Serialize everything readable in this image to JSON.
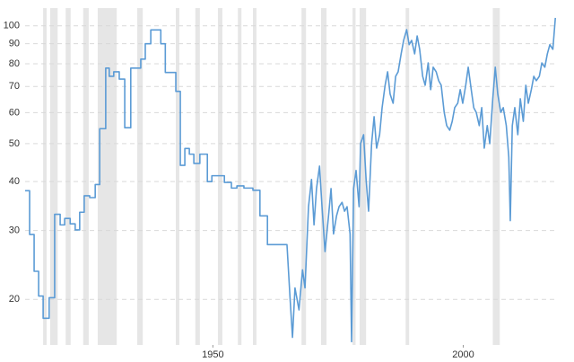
{
  "chart_data": {
    "type": "line",
    "log_scale_y": true,
    "grid": true,
    "xlim": [
      1912.5,
      2018.9
    ],
    "ylim": [
      15.3,
      111
    ],
    "xticks": [
      1950,
      2000
    ],
    "yticks": [
      20,
      30,
      40,
      50,
      60,
      70,
      80,
      90,
      100
    ],
    "recession_color": "#e6e6e6",
    "recessions": [
      [
        1916.1,
        1916.8
      ],
      [
        1917.5,
        1919.0
      ],
      [
        1920.6,
        1921.6
      ],
      [
        1924.1,
        1925.2
      ],
      [
        1927.0,
        1930.8
      ],
      [
        1934.9,
        1936.0
      ],
      [
        1942.6,
        1943.3
      ],
      [
        1946.5,
        1947.4
      ],
      [
        1951.0,
        1951.9
      ],
      [
        1955.0,
        1955.7
      ],
      [
        1958.0,
        1958.7
      ],
      [
        1967.7,
        1968.6
      ],
      [
        1971.6,
        1972.7
      ],
      [
        1977.9,
        1978.5
      ],
      [
        1979.3,
        1980.6
      ],
      [
        1988.5,
        1989.2
      ],
      [
        2005.9,
        2007.3
      ]
    ],
    "series": [
      {
        "color": "#5b9bd5",
        "x": [
          1912.5,
          1913.4,
          1913.4,
          1914.3,
          1914.3,
          1915.2,
          1915.2,
          1916.1,
          1916.1,
          1917.3,
          1917.3,
          1918.4,
          1918.4,
          1919.5,
          1919.5,
          1920.4,
          1920.4,
          1921.5,
          1921.5,
          1922.5,
          1922.5,
          1923.4,
          1923.4,
          1924.3,
          1924.3,
          1925.4,
          1925.4,
          1926.5,
          1926.5,
          1927.4,
          1927.4,
          1928.6,
          1928.6,
          1929.3,
          1929.3,
          1930.2,
          1930.2,
          1931.3,
          1931.3,
          1932.4,
          1932.4,
          1933.6,
          1933.6,
          1935.6,
          1935.6,
          1936.5,
          1936.5,
          1937.6,
          1937.6,
          1939.6,
          1939.6,
          1940.5,
          1940.5,
          1942.6,
          1942.6,
          1943.5,
          1943.5,
          1944.4,
          1944.4,
          1945.3,
          1945.3,
          1946.2,
          1946.2,
          1947.4,
          1947.4,
          1948.9,
          1948.9,
          1949.8,
          1949.8,
          1952.3,
          1952.3,
          1953.7,
          1953.7,
          1954.8,
          1954.8,
          1956.2,
          1956.2,
          1958.0,
          1958.0,
          1959.4,
          1959.4,
          1960.9,
          1960.9,
          1964.8,
          1965.4,
          1965.9,
          1966.4,
          1967.2,
          1967.9,
          1968.4,
          1969.1,
          1969.7,
          1970.2,
          1970.7,
          1971.3,
          1971.8,
          1972.4,
          1973.1,
          1973.6,
          1974.1,
          1974.7,
          1975.2,
          1975.8,
          1976.3,
          1976.8,
          1977.4,
          1977.7,
          1978.1,
          1978.6,
          1979.2,
          1979.5,
          1980.1,
          1980.6,
          1981.1,
          1981.7,
          1982.2,
          1982.7,
          1983.3,
          1983.8,
          1984.4,
          1984.9,
          1985.4,
          1986.0,
          1986.5,
          1987.0,
          1987.6,
          1988.1,
          1988.7,
          1989.2,
          1989.7,
          1990.3,
          1990.8,
          1991.3,
          1991.9,
          1992.4,
          1993.0,
          1993.5,
          1994.0,
          1994.6,
          1995.1,
          1995.6,
          1996.2,
          1996.7,
          1997.3,
          1997.8,
          1998.3,
          1998.9,
          1999.4,
          1999.9,
          2000.5,
          2001.0,
          2001.6,
          2002.1,
          2002.6,
          2003.2,
          2003.7,
          2004.2,
          2004.8,
          2005.3,
          2005.9,
          2006.4,
          2006.9,
          2007.5,
          2008.0,
          2008.6,
          2009.1,
          2009.4,
          2009.8,
          2010.3,
          2010.9,
          2011.4,
          2012.0,
          2012.5,
          2013.0,
          2013.6,
          2014.1,
          2014.6,
          2015.2,
          2015.7,
          2016.3,
          2016.8,
          2017.3,
          2017.9,
          2018.4
        ],
        "values": [
          37.9,
          37.9,
          29.3,
          29.3,
          23.6,
          23.6,
          20.4,
          20.4,
          17.9,
          17.9,
          20.2,
          20.2,
          33,
          33,
          31,
          31,
          32.2,
          32.2,
          31.2,
          31.2,
          30.1,
          30.1,
          33.4,
          33.4,
          36.8,
          36.8,
          36.4,
          36.4,
          39.3,
          39.3,
          54.6,
          54.6,
          78,
          78,
          74.3,
          74.3,
          76.3,
          76.3,
          73.1,
          73.1,
          54.9,
          54.9,
          78,
          78,
          82.2,
          82.2,
          90,
          90,
          97.6,
          97.6,
          90,
          90,
          76,
          76,
          68,
          68,
          44,
          44,
          48.6,
          48.6,
          47,
          47,
          44.5,
          44.5,
          47,
          47,
          40,
          40,
          41.4,
          41.4,
          39.8,
          39.8,
          38.5,
          38.5,
          39,
          39,
          38.5,
          38.5,
          38,
          38,
          32.7,
          32.7,
          27.6,
          27.6,
          20.3,
          16.0,
          21.4,
          18.8,
          23.8,
          21.4,
          34.5,
          40.5,
          31.0,
          38.4,
          43.8,
          34.5,
          26.5,
          32.7,
          38.4,
          29.4,
          32.7,
          34.5,
          35.4,
          33.6,
          34.5,
          29.4,
          15.6,
          38.4,
          42.7,
          34.5,
          50.0,
          52.7,
          40.5,
          33.6,
          50.0,
          58.6,
          48.7,
          52.7,
          61.8,
          70.5,
          76.3,
          66.9,
          63.4,
          74.3,
          76.3,
          84.8,
          91.8,
          97.8,
          89.5,
          91.8,
          84.8,
          94.2,
          87.1,
          74.3,
          70.5,
          80.4,
          68.7,
          78.4,
          76.3,
          72.4,
          70.5,
          60.1,
          55.6,
          54.1,
          57.0,
          61.8,
          63.4,
          68.7,
          63.4,
          70.5,
          78.4,
          68.7,
          61.8,
          60.1,
          55.6,
          61.8,
          48.7,
          55.6,
          50.0,
          65.1,
          78.4,
          66.9,
          60.1,
          61.8,
          55.6,
          46.2,
          31.8,
          55.6,
          61.8,
          52.7,
          65.1,
          57.0,
          70.5,
          63.4,
          68.7,
          74.3,
          72.4,
          74.3,
          80.4,
          78.4,
          84.8,
          89.5,
          87.1,
          104.8
        ]
      }
    ]
  }
}
